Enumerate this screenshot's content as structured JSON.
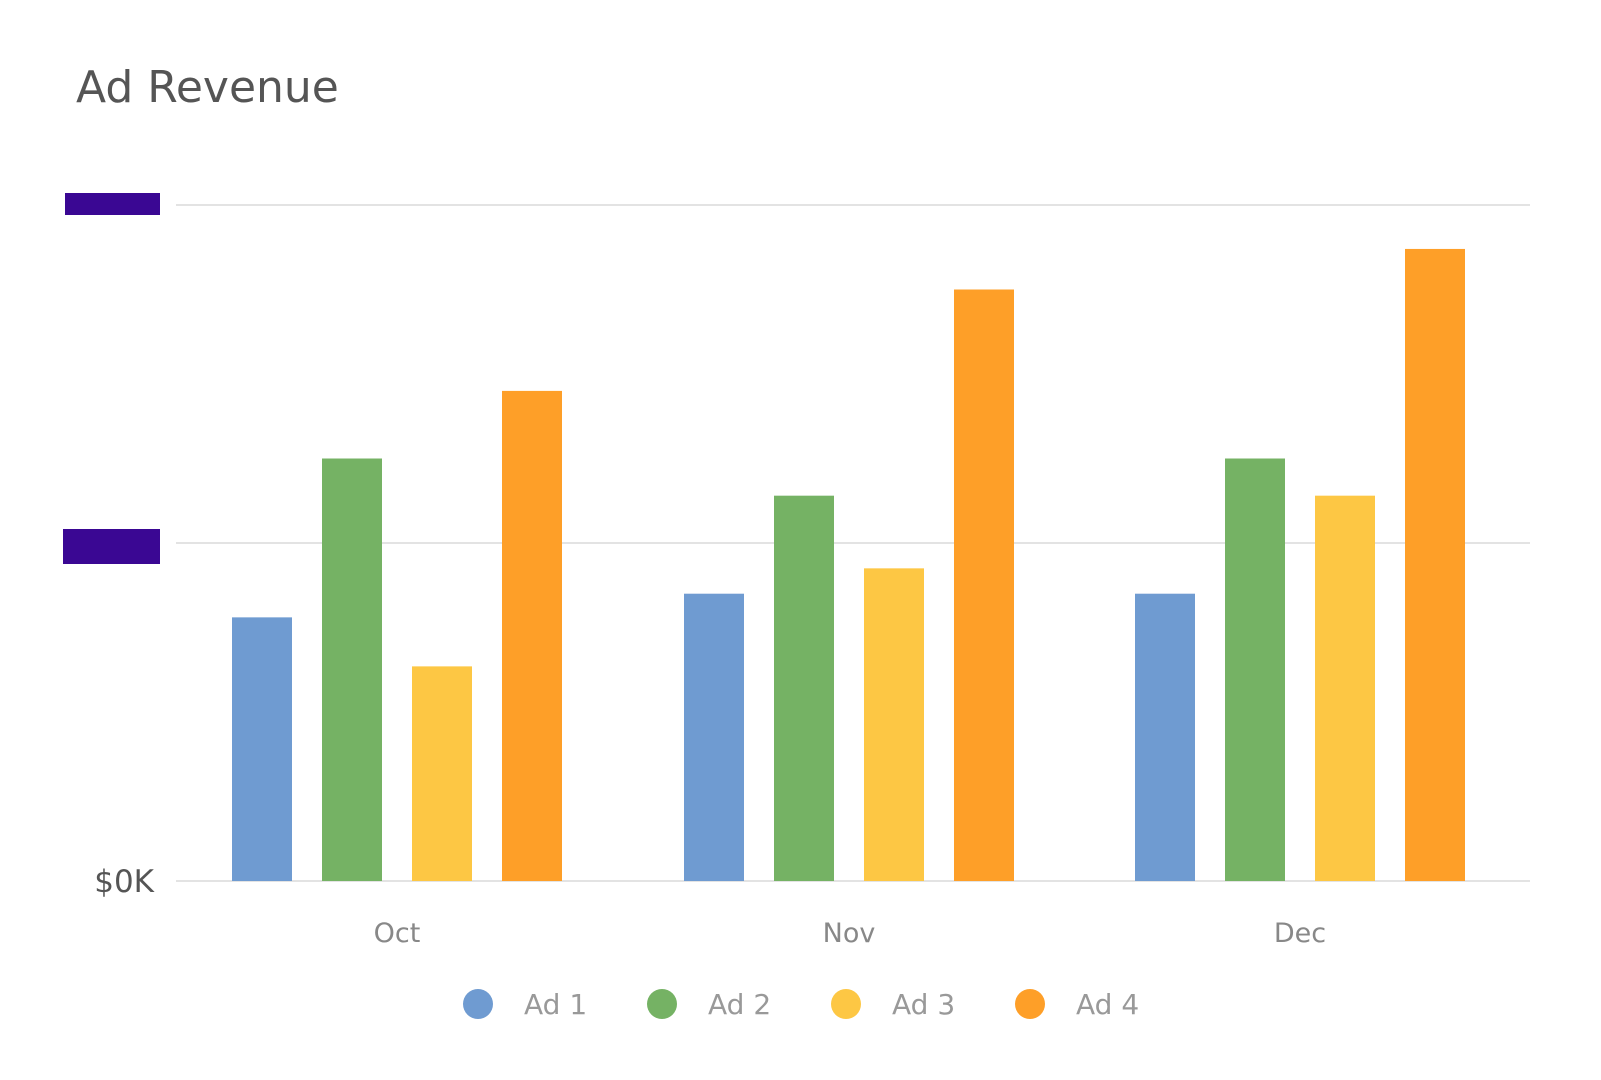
{
  "chart_data": {
    "type": "bar",
    "title": "Ad Revenue",
    "xlabel": "",
    "ylabel": "",
    "categories": [
      "Oct",
      "Nov",
      "Dec"
    ],
    "yticks": [
      "$0K",
      "",
      ""
    ],
    "ylim": [
      0,
      20
    ],
    "grid": true,
    "legend_position": "bottom",
    "series": [
      {
        "name": "Ad 1",
        "color": "#6f9bd1",
        "values": [
          7.8,
          8.5,
          8.5
        ]
      },
      {
        "name": "Ad 2",
        "color": "#75b264",
        "values": [
          12.5,
          11.4,
          12.5
        ]
      },
      {
        "name": "Ad 3",
        "color": "#fdc744",
        "values": [
          6.35,
          9.25,
          11.4
        ]
      },
      {
        "name": "Ad 4",
        "color": "#fe9f28",
        "values": [
          14.5,
          17.5,
          18.7
        ]
      }
    ]
  }
}
